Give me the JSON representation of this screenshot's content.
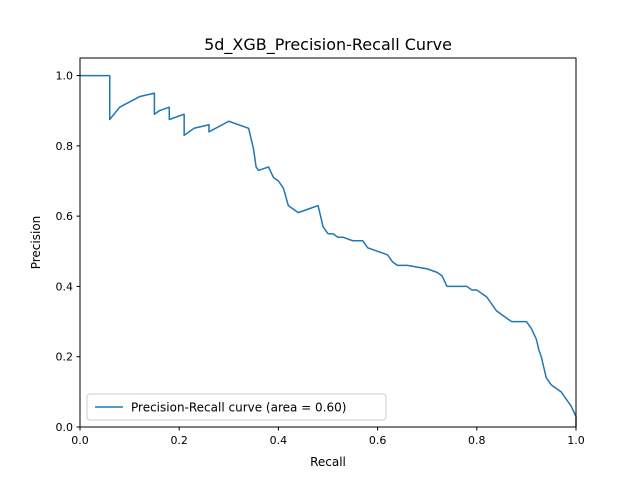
{
  "chart_data": {
    "type": "line",
    "title": "5d_XGB_Precision-Recall Curve",
    "xlabel": "Recall",
    "ylabel": "Precision",
    "xlim": [
      0.0,
      1.0
    ],
    "ylim": [
      0.0,
      1.05
    ],
    "grid": false,
    "legend_position": "lower-left",
    "xticks": [
      "0.0",
      "0.2",
      "0.4",
      "0.6",
      "0.8",
      "1.0"
    ],
    "yticks": [
      "0.0",
      "0.2",
      "0.4",
      "0.6",
      "0.8",
      "1.0"
    ],
    "series": [
      {
        "name": "Precision-Recall curve (area = 0.60)",
        "color": "#1f77b4",
        "step": true,
        "x": [
          1.0,
          1.0,
          0.99,
          0.99,
          0.98,
          0.98,
          0.97,
          0.97,
          0.96,
          0.96,
          0.95,
          0.95,
          0.94,
          0.94,
          0.935,
          0.935,
          0.93,
          0.93,
          0.925,
          0.925,
          0.92,
          0.92,
          0.91,
          0.91,
          0.9,
          0.9,
          0.89,
          0.89,
          0.87,
          0.87,
          0.84,
          0.84,
          0.83,
          0.83,
          0.82,
          0.82,
          0.81,
          0.81,
          0.8,
          0.8,
          0.79,
          0.79,
          0.78,
          0.78,
          0.74,
          0.74,
          0.73,
          0.73,
          0.72,
          0.72,
          0.7,
          0.7,
          0.66,
          0.66,
          0.64,
          0.64,
          0.63,
          0.63,
          0.62,
          0.62,
          0.6,
          0.6,
          0.58,
          0.58,
          0.57,
          0.57,
          0.55,
          0.55,
          0.53,
          0.53,
          0.52,
          0.52,
          0.51,
          0.51,
          0.5,
          0.5,
          0.49,
          0.49,
          0.48,
          0.48,
          0.46,
          0.46,
          0.44,
          0.44,
          0.42,
          0.42,
          0.41,
          0.41,
          0.4,
          0.4,
          0.39,
          0.39,
          0.38,
          0.38,
          0.36,
          0.36,
          0.355,
          0.355,
          0.35,
          0.35,
          0.345,
          0.345,
          0.34,
          0.34,
          0.3,
          0.26,
          0.26,
          0.23,
          0.21,
          0.21,
          0.19,
          0.18,
          0.18,
          0.16,
          0.15,
          0.15,
          0.12,
          0.1,
          0.08,
          0.06,
          0.06,
          0.0
        ],
        "y": [
          0.0,
          0.03,
          0.06,
          0.06,
          0.08,
          0.08,
          0.1,
          0.1,
          0.11,
          0.11,
          0.12,
          0.12,
          0.14,
          0.14,
          0.17,
          0.17,
          0.2,
          0.2,
          0.22,
          0.22,
          0.25,
          0.25,
          0.28,
          0.28,
          0.3,
          0.3,
          0.3,
          0.3,
          0.3,
          0.3,
          0.33,
          0.33,
          0.35,
          0.35,
          0.37,
          0.37,
          0.38,
          0.38,
          0.39,
          0.39,
          0.39,
          0.39,
          0.4,
          0.4,
          0.4,
          0.4,
          0.43,
          0.43,
          0.44,
          0.44,
          0.45,
          0.45,
          0.46,
          0.46,
          0.46,
          0.46,
          0.47,
          0.47,
          0.49,
          0.49,
          0.5,
          0.5,
          0.51,
          0.51,
          0.53,
          0.53,
          0.53,
          0.53,
          0.54,
          0.54,
          0.54,
          0.54,
          0.55,
          0.55,
          0.55,
          0.55,
          0.57,
          0.57,
          0.63,
          0.63,
          0.62,
          0.62,
          0.61,
          0.61,
          0.63,
          0.63,
          0.68,
          0.68,
          0.7,
          0.7,
          0.71,
          0.71,
          0.74,
          0.74,
          0.73,
          0.73,
          0.74,
          0.74,
          0.79,
          0.79,
          0.82,
          0.82,
          0.85,
          0.85,
          0.87,
          0.84,
          0.86,
          0.85,
          0.83,
          0.89,
          0.88,
          0.875,
          0.91,
          0.9,
          0.89,
          0.95,
          0.94,
          0.925,
          0.91,
          0.875,
          1.0,
          1.0
        ]
      }
    ]
  }
}
